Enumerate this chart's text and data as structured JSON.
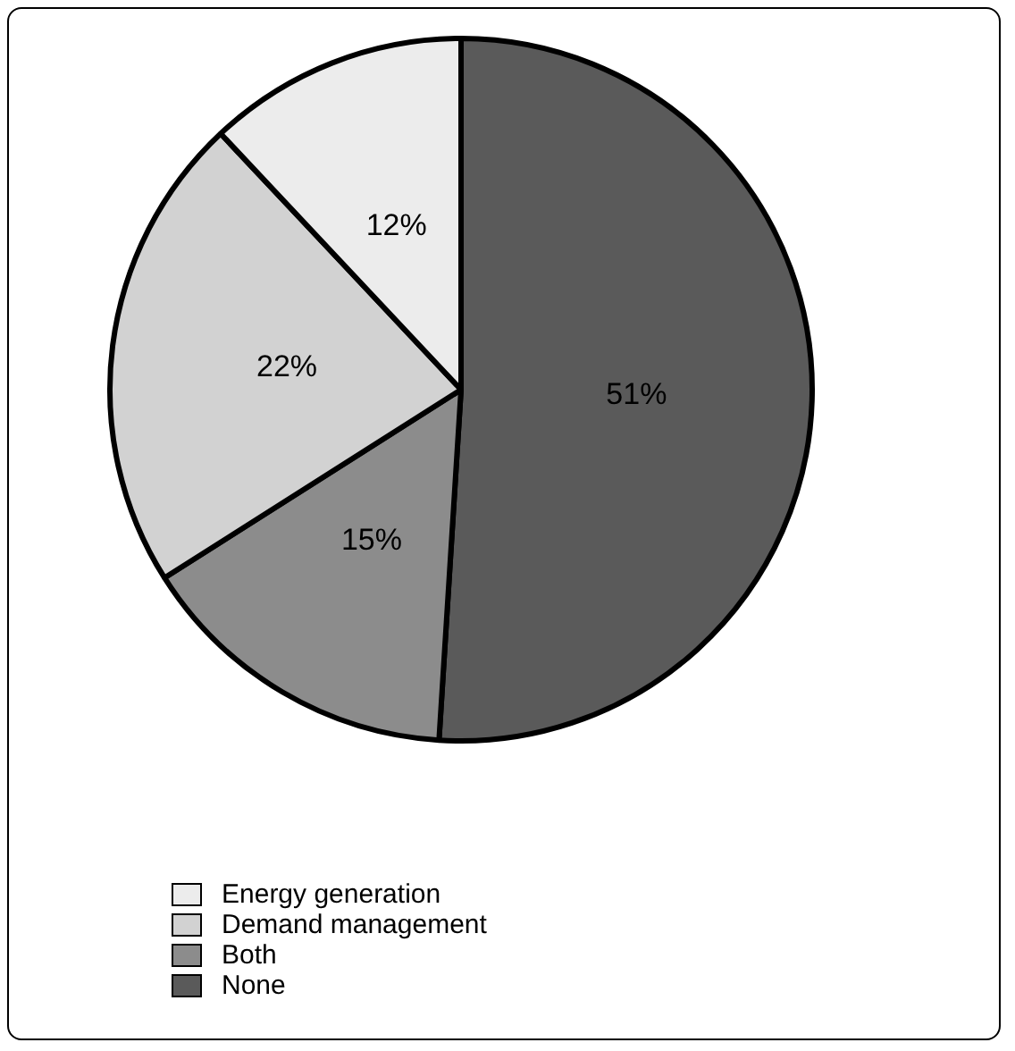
{
  "chart_data": {
    "type": "pie",
    "categories": [
      "None",
      "Both",
      "Demand management",
      "Energy generation"
    ],
    "values": [
      51,
      15,
      22,
      12
    ],
    "colors": [
      "#5a5a5a",
      "#8c8c8c",
      "#d2d2d2",
      "#ececec"
    ],
    "value_labels": [
      "51%",
      "15%",
      "22%",
      "12%"
    ],
    "legend": "bottom left"
  }
}
